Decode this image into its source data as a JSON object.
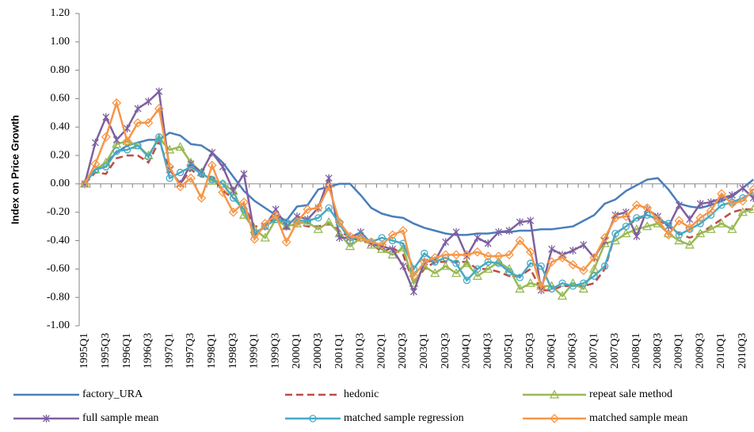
{
  "chart_data": {
    "type": "line",
    "y_label": "Index on Price Growth",
    "categories": [
      "1995Q1",
      null,
      "1995Q3",
      null,
      "1996Q1",
      null,
      "1996Q3",
      null,
      "1997Q1",
      null,
      "1997Q3",
      null,
      "1998Q1",
      null,
      "1998Q3",
      null,
      "1999Q1",
      null,
      "1999Q3",
      null,
      "2000Q1",
      null,
      "2000Q3",
      null,
      "2001Q1",
      null,
      "2001Q3",
      null,
      "2002Q1",
      null,
      "2002Q3",
      null,
      "2003Q1",
      null,
      "2003Q3",
      null,
      "2004Q1",
      null,
      "2004Q3",
      null,
      "2005Q1",
      null,
      "2005Q3",
      null,
      "2006Q1",
      null,
      "2006Q3",
      null,
      "2007Q1",
      null,
      "2007Q3",
      null,
      "2008Q1",
      null,
      "2008Q3",
      null,
      "2009Q1",
      null,
      "2009Q3",
      null,
      "2010Q1",
      null,
      "2010Q3",
      null
    ],
    "ylim": [
      -1.0,
      1.2
    ],
    "yticks": [
      {
        "value": -1.0,
        "label": "-1.00"
      },
      {
        "value": -0.8,
        "label": "-0.80"
      },
      {
        "value": -0.6,
        "label": "-0.60"
      },
      {
        "value": -0.4,
        "label": "-0.40"
      },
      {
        "value": -0.2,
        "label": "-0.20"
      },
      {
        "value": 0,
        "label": "0.00"
      },
      {
        "value": 0.2,
        "label": "0.20"
      },
      {
        "value": 0.4,
        "label": "0.40"
      },
      {
        "value": 0.6,
        "label": "0.60"
      },
      {
        "value": 0.8,
        "label": "0.80"
      },
      {
        "value": 1.0,
        "label": "1.00"
      },
      {
        "value": 1.2,
        "label": "1.20"
      }
    ],
    "grid": false,
    "legend": "bottom",
    "series": [
      {
        "name": "factory_URA",
        "color": "#4a7ebb",
        "marker": "none",
        "line_style": "solid",
        "values": [
          0,
          0.1,
          0.15,
          0.22,
          0.27,
          0.29,
          0.31,
          0.31,
          0.36,
          0.34,
          0.28,
          0.27,
          0.22,
          0.15,
          0.05,
          -0.05,
          -0.12,
          -0.17,
          -0.22,
          -0.26,
          -0.16,
          -0.15,
          -0.04,
          -0.02,
          0.0,
          0.0,
          -0.08,
          -0.17,
          -0.21,
          -0.23,
          -0.24,
          -0.28,
          -0.31,
          -0.33,
          -0.35,
          -0.36,
          -0.36,
          -0.35,
          -0.35,
          -0.34,
          -0.34,
          -0.33,
          -0.33,
          -0.32,
          -0.32,
          -0.31,
          -0.3,
          -0.26,
          -0.22,
          -0.14,
          -0.11,
          -0.05,
          -0.01,
          0.03,
          0.04,
          -0.04,
          -0.14,
          -0.16,
          -0.17,
          -0.15,
          -0.12,
          -0.09,
          -0.03,
          0.03
        ]
      },
      {
        "name": "hedonic",
        "color": "#be4b48",
        "marker": "none",
        "line_style": "dashed",
        "values": [
          0,
          0.08,
          0.07,
          0.18,
          0.2,
          0.2,
          0.15,
          0.3,
          0.1,
          0.0,
          0.1,
          0.05,
          0.05,
          -0.05,
          -0.1,
          -0.15,
          -0.3,
          -0.3,
          -0.22,
          -0.32,
          -0.28,
          -0.3,
          -0.3,
          -0.28,
          -0.33,
          -0.38,
          -0.4,
          -0.42,
          -0.48,
          -0.45,
          -0.5,
          -0.7,
          -0.6,
          -0.55,
          -0.55,
          -0.55,
          -0.55,
          -0.6,
          -0.6,
          -0.62,
          -0.65,
          -0.65,
          -0.6,
          -0.75,
          -0.75,
          -0.72,
          -0.72,
          -0.72,
          -0.7,
          -0.6,
          -0.35,
          -0.3,
          -0.25,
          -0.22,
          -0.25,
          -0.3,
          -0.35,
          -0.38,
          -0.35,
          -0.3,
          -0.25,
          -0.2,
          -0.18,
          -0.18
        ]
      },
      {
        "name": "repeat sale method",
        "color": "#98b954",
        "marker": "triangle",
        "line_style": "solid",
        "values": [
          0,
          0.1,
          0.15,
          0.28,
          0.3,
          0.27,
          0.2,
          0.32,
          0.24,
          0.26,
          0.15,
          0.08,
          0.02,
          0.0,
          -0.05,
          -0.22,
          -0.32,
          -0.38,
          -0.25,
          -0.3,
          -0.28,
          -0.27,
          -0.32,
          -0.27,
          -0.35,
          -0.44,
          -0.38,
          -0.43,
          -0.46,
          -0.5,
          -0.45,
          -0.7,
          -0.58,
          -0.63,
          -0.58,
          -0.63,
          -0.56,
          -0.65,
          -0.6,
          -0.55,
          -0.6,
          -0.74,
          -0.7,
          -0.72,
          -0.72,
          -0.79,
          -0.7,
          -0.74,
          -0.6,
          -0.42,
          -0.4,
          -0.35,
          -0.32,
          -0.3,
          -0.28,
          -0.35,
          -0.4,
          -0.43,
          -0.35,
          -0.32,
          -0.28,
          -0.32,
          -0.2,
          -0.18
        ]
      },
      {
        "name": "full sample mean",
        "color": "#7d60a0",
        "marker": "star",
        "line_style": "solid",
        "values": [
          0,
          0.29,
          0.47,
          0.31,
          0.39,
          0.53,
          0.58,
          0.65,
          0.1,
          0.0,
          0.14,
          0.08,
          0.22,
          0.12,
          -0.05,
          0.07,
          -0.36,
          -0.3,
          -0.18,
          -0.3,
          -0.23,
          -0.25,
          -0.17,
          0.04,
          -0.38,
          -0.38,
          -0.34,
          -0.42,
          -0.44,
          -0.46,
          -0.58,
          -0.76,
          -0.55,
          -0.54,
          -0.41,
          -0.34,
          -0.51,
          -0.38,
          -0.42,
          -0.34,
          -0.33,
          -0.27,
          -0.26,
          -0.75,
          -0.46,
          -0.5,
          -0.47,
          -0.43,
          -0.52,
          -0.4,
          -0.22,
          -0.2,
          -0.37,
          -0.18,
          -0.23,
          -0.3,
          -0.15,
          -0.25,
          -0.14,
          -0.13,
          -0.1,
          -0.08,
          -0.03,
          -0.1
        ]
      },
      {
        "name": "matched sample regression",
        "color": "#46aac5",
        "marker": "circle",
        "line_style": "solid",
        "values": [
          0,
          0.1,
          0.12,
          0.23,
          0.24,
          0.27,
          0.19,
          0.33,
          0.04,
          0.08,
          0.12,
          0.07,
          0.03,
          0.0,
          -0.1,
          -0.18,
          -0.35,
          -0.3,
          -0.25,
          -0.27,
          -0.26,
          -0.26,
          -0.24,
          -0.17,
          -0.28,
          -0.4,
          -0.36,
          -0.41,
          -0.38,
          -0.4,
          -0.42,
          -0.6,
          -0.49,
          -0.55,
          -0.52,
          -0.56,
          -0.68,
          -0.6,
          -0.55,
          -0.56,
          -0.62,
          -0.66,
          -0.56,
          -0.58,
          -0.74,
          -0.7,
          -0.72,
          -0.7,
          -0.65,
          -0.58,
          -0.35,
          -0.3,
          -0.24,
          -0.22,
          -0.25,
          -0.28,
          -0.36,
          -0.32,
          -0.28,
          -0.22,
          -0.15,
          -0.13,
          -0.1,
          -0.06
        ]
      },
      {
        "name": "matched sample mean",
        "color": "#f79646",
        "marker": "diamond",
        "line_style": "solid",
        "values": [
          0,
          0.14,
          0.33,
          0.57,
          0.3,
          0.43,
          0.43,
          0.53,
          0.12,
          -0.02,
          0.04,
          -0.1,
          0.13,
          -0.06,
          -0.2,
          -0.13,
          -0.39,
          -0.28,
          -0.22,
          -0.41,
          -0.27,
          -0.18,
          -0.17,
          -0.02,
          -0.27,
          -0.37,
          -0.38,
          -0.41,
          -0.43,
          -0.36,
          -0.33,
          -0.65,
          -0.55,
          -0.52,
          -0.5,
          -0.5,
          -0.5,
          -0.48,
          -0.51,
          -0.51,
          -0.5,
          -0.4,
          -0.48,
          -0.73,
          -0.55,
          -0.52,
          -0.57,
          -0.61,
          -0.52,
          -0.38,
          -0.24,
          -0.23,
          -0.15,
          -0.17,
          -0.25,
          -0.36,
          -0.26,
          -0.31,
          -0.24,
          -0.19,
          -0.07,
          -0.14,
          -0.12,
          -0.04
        ]
      }
    ]
  }
}
